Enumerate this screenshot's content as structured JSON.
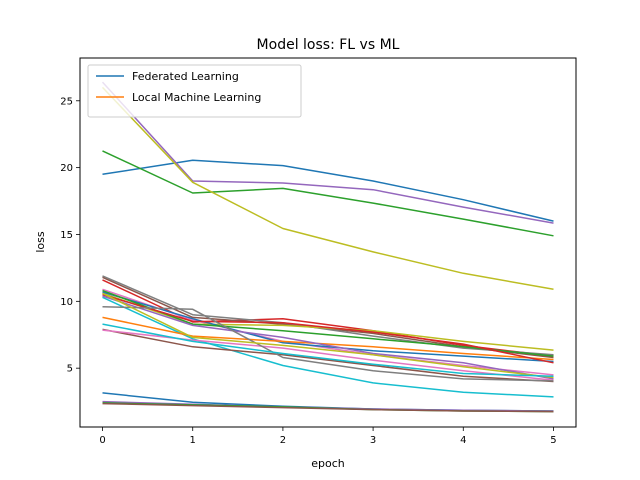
{
  "chart_data": {
    "type": "line",
    "title": "Model loss: FL vs ML",
    "xlabel": "epoch",
    "ylabel": "loss",
    "x": [
      0,
      1,
      2,
      3,
      4,
      5
    ],
    "xlim": [
      -0.25,
      5.25
    ],
    "ylim": [
      0.6,
      28.2
    ],
    "xticks": [
      0,
      1,
      2,
      3,
      4,
      5
    ],
    "yticks": [
      5,
      10,
      15,
      20,
      25
    ],
    "grid": false,
    "legend": {
      "placement": "top-left",
      "entries": [
        {
          "label": "Federated Learning",
          "color": "#1f77b4"
        },
        {
          "label": "Local Machine Learning",
          "color": "#ff7f0e"
        }
      ]
    },
    "series": [
      {
        "color": "#1f77b4",
        "values": [
          19.5,
          20.55,
          20.15,
          19.0,
          17.6,
          16.0
        ]
      },
      {
        "color": "#9467bd",
        "values": [
          26.4,
          19.0,
          18.85,
          18.35,
          17.05,
          15.85
        ]
      },
      {
        "color": "#2ca02c",
        "values": [
          21.25,
          18.1,
          18.45,
          17.35,
          16.15,
          14.9
        ]
      },
      {
        "color": "#bcbd22",
        "values": [
          26.0,
          18.9,
          15.45,
          13.7,
          12.1,
          10.9
        ]
      },
      {
        "color": "#d62728",
        "values": [
          11.6,
          8.45,
          8.7,
          7.8,
          6.7,
          5.9
        ]
      },
      {
        "color": "#8c564b",
        "values": [
          11.8,
          8.8,
          8.3,
          7.6,
          6.6,
          5.8
        ]
      },
      {
        "color": "#e377c2",
        "values": [
          10.9,
          8.6,
          7.0,
          6.0,
          5.2,
          4.5
        ]
      },
      {
        "color": "#7f7f7f",
        "values": [
          11.9,
          9.0,
          8.4,
          7.4,
          6.5,
          6.0
        ]
      },
      {
        "color": "#bcbd22",
        "values": [
          10.6,
          8.3,
          8.2,
          7.8,
          7.0,
          6.35
        ]
      },
      {
        "color": "#17becf",
        "values": [
          10.3,
          7.2,
          5.2,
          3.9,
          3.2,
          2.85
        ]
      },
      {
        "color": "#1f77b4",
        "values": [
          10.7,
          8.7,
          6.9,
          6.3,
          5.9,
          5.5
        ]
      },
      {
        "color": "#ff7f0e",
        "values": [
          8.8,
          7.4,
          7.0,
          6.6,
          6.1,
          5.65
        ]
      },
      {
        "color": "#2ca02c",
        "values": [
          10.8,
          8.3,
          7.8,
          7.2,
          6.6,
          5.9
        ]
      },
      {
        "color": "#d62728",
        "values": [
          10.5,
          8.5,
          8.4,
          7.7,
          6.8,
          5.4
        ]
      },
      {
        "color": "#9467bd",
        "values": [
          10.4,
          8.2,
          7.3,
          6.1,
          5.4,
          4.2
        ]
      },
      {
        "color": "#8c564b",
        "values": [
          7.9,
          6.6,
          6.0,
          5.2,
          4.4,
          4.0
        ]
      },
      {
        "color": "#e377c2",
        "values": [
          7.85,
          7.1,
          6.5,
          5.6,
          4.8,
          4.1
        ]
      },
      {
        "color": "#7f7f7f",
        "values": [
          9.6,
          9.4,
          5.8,
          4.8,
          4.2,
          4.05
        ]
      },
      {
        "color": "#bcbd22",
        "values": [
          10.6,
          7.3,
          6.7,
          6.0,
          5.1,
          4.3
        ]
      },
      {
        "color": "#17becf",
        "values": [
          8.3,
          7.0,
          6.1,
          5.3,
          4.6,
          4.4
        ]
      },
      {
        "color": "#1f77b4",
        "values": [
          3.15,
          2.45,
          2.15,
          1.95,
          1.85,
          1.8
        ]
      },
      {
        "color": "#9467bd",
        "values": [
          2.5,
          2.3,
          2.1,
          1.95,
          1.85,
          1.8
        ]
      },
      {
        "color": "#2ca02c",
        "values": [
          2.4,
          2.25,
          2.1,
          1.9,
          1.8,
          1.75
        ]
      },
      {
        "color": "#8c564b",
        "values": [
          2.35,
          2.2,
          2.05,
          1.9,
          1.8,
          1.75
        ]
      }
    ]
  }
}
